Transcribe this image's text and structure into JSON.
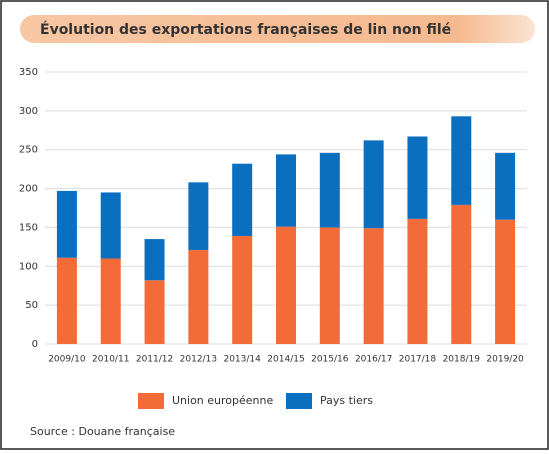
{
  "chart_data": {
    "type": "stacked_bar",
    "title": "Évolution des exportations françaises de lin non filé",
    "source": "Source : Douane française",
    "categories": [
      "2009/10",
      "2010/11",
      "2011/12",
      "2012/13",
      "2013/14",
      "2014/15",
      "2015/16",
      "2016/17",
      "2017/18",
      "2018/19",
      "2019/20"
    ],
    "series": [
      {
        "name": "Union européenne",
        "color": "#f26b38",
        "values": [
          111,
          110,
          82,
          121,
          139,
          151,
          150,
          149,
          161,
          179,
          160
        ]
      },
      {
        "name": "Pays tiers",
        "color": "#0b6fc0",
        "values": [
          86,
          85,
          53,
          87,
          93,
          93,
          96,
          113,
          106,
          114,
          86
        ]
      }
    ],
    "ylim": [
      0,
      350
    ],
    "yticks": [
      0,
      50,
      100,
      150,
      200,
      250,
      300,
      350
    ],
    "grid": true,
    "legend": "bottom"
  }
}
